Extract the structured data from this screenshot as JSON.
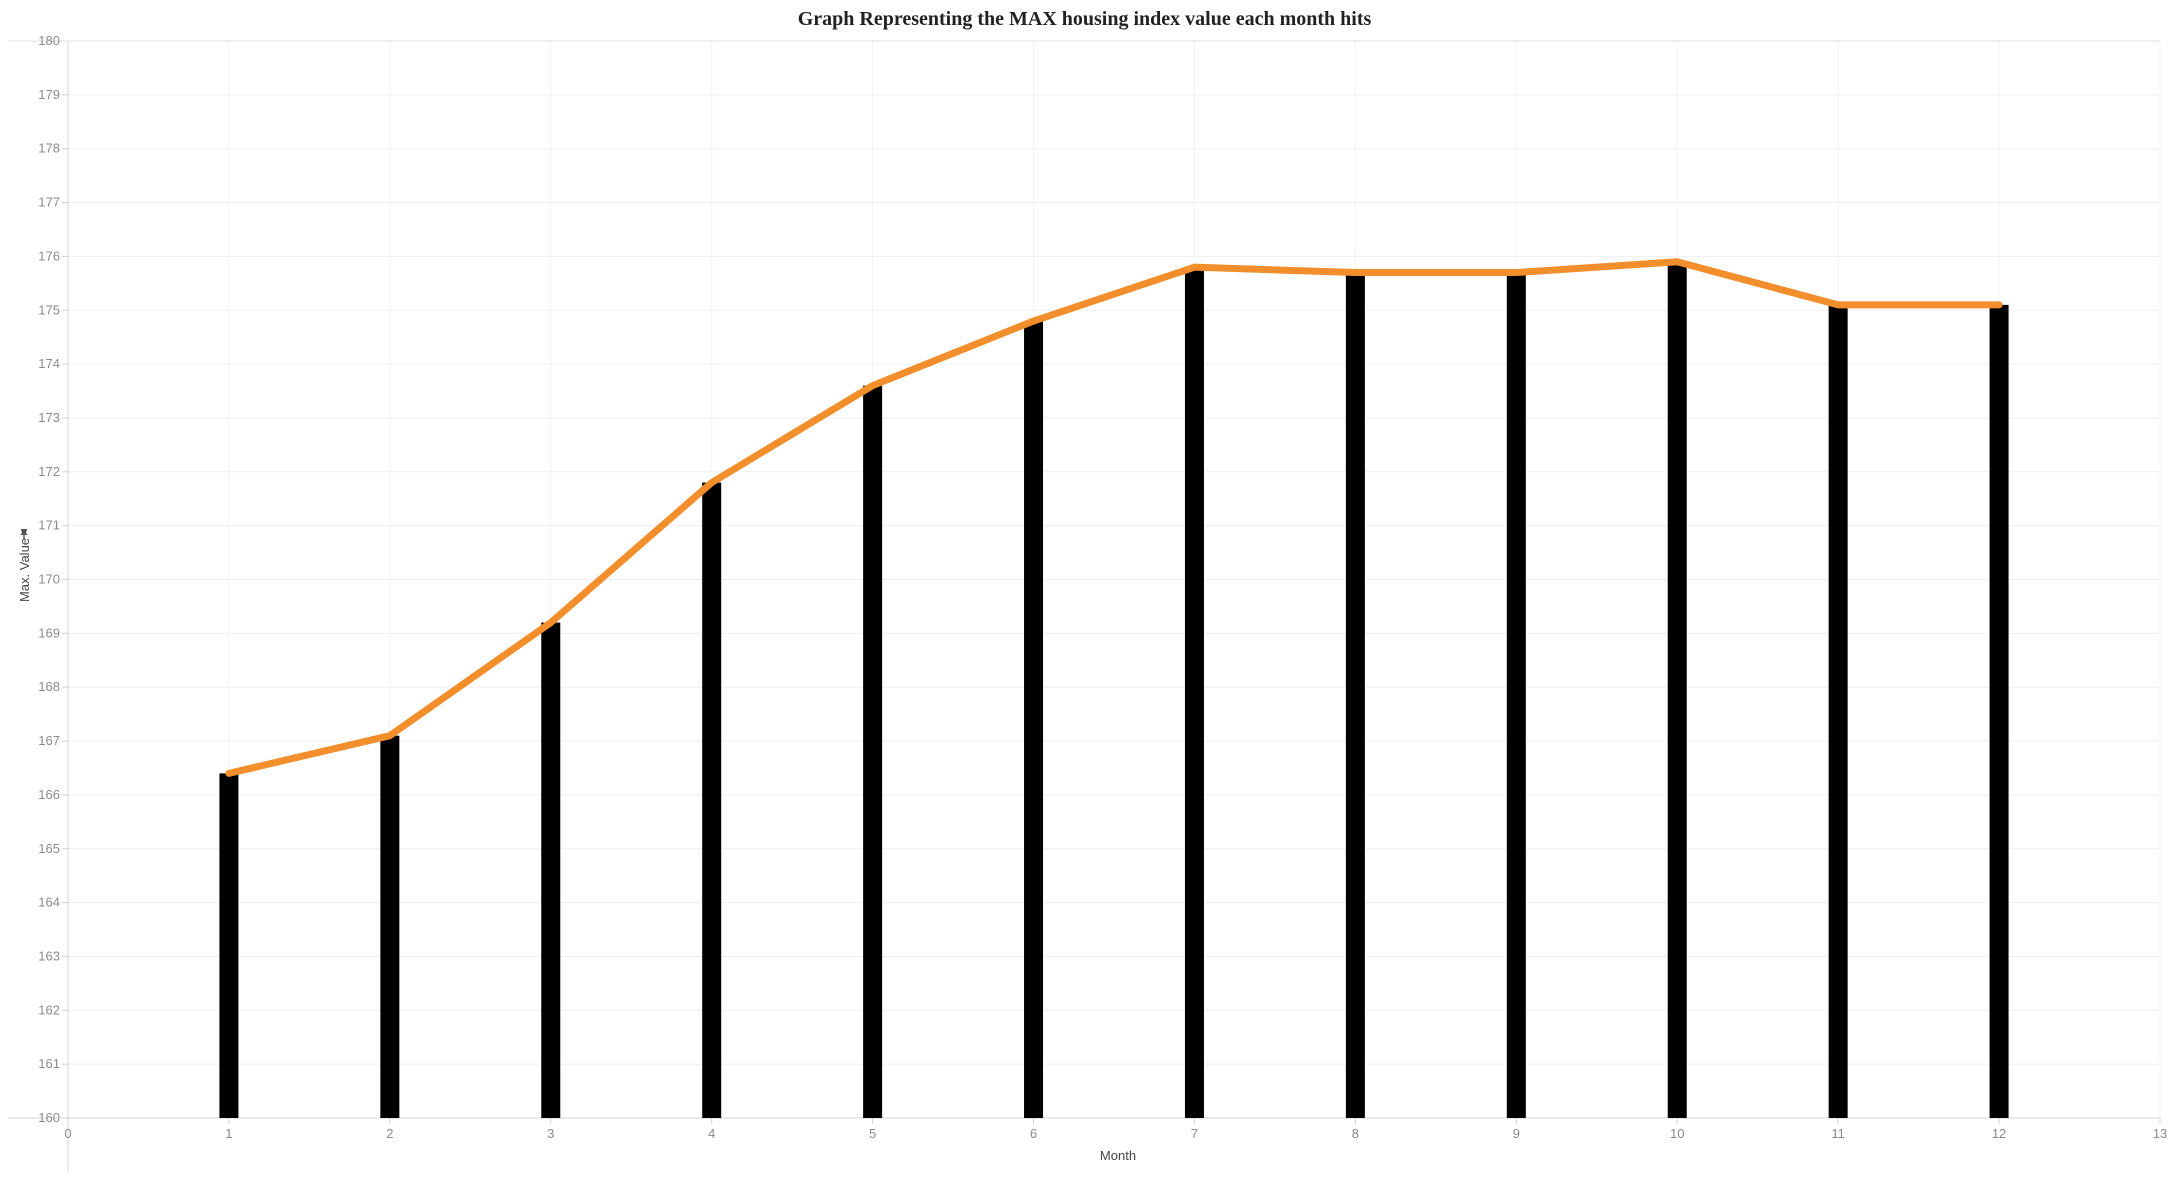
{
  "chart_data": {
    "type": "bar",
    "title": "Graph Representing the MAX housing index value each month hits",
    "xlabel": "Month",
    "ylabel": "Max. Value",
    "xlim": [
      0,
      13
    ],
    "ylim": [
      160,
      180
    ],
    "xticks": [
      0,
      1,
      2,
      3,
      4,
      5,
      6,
      7,
      8,
      9,
      10,
      11,
      12,
      13
    ],
    "yticks": [
      160,
      161,
      162,
      163,
      164,
      165,
      166,
      167,
      168,
      169,
      170,
      171,
      172,
      173,
      174,
      175,
      176,
      177,
      178,
      179,
      180
    ],
    "grid": true,
    "x": [
      1,
      2,
      3,
      4,
      5,
      6,
      7,
      8,
      9,
      10,
      11,
      12
    ],
    "series": [
      {
        "type": "bar",
        "values": [
          166.4,
          167.1,
          169.2,
          171.8,
          173.6,
          174.8,
          175.8,
          175.7,
          175.7,
          175.9,
          175.1,
          175.1
        ],
        "color": "#000000"
      },
      {
        "type": "line",
        "values": [
          166.4,
          167.1,
          169.2,
          171.8,
          173.6,
          174.8,
          175.8,
          175.7,
          175.7,
          175.9,
          175.1,
          175.1
        ],
        "color": "#f28e2b"
      }
    ]
  }
}
